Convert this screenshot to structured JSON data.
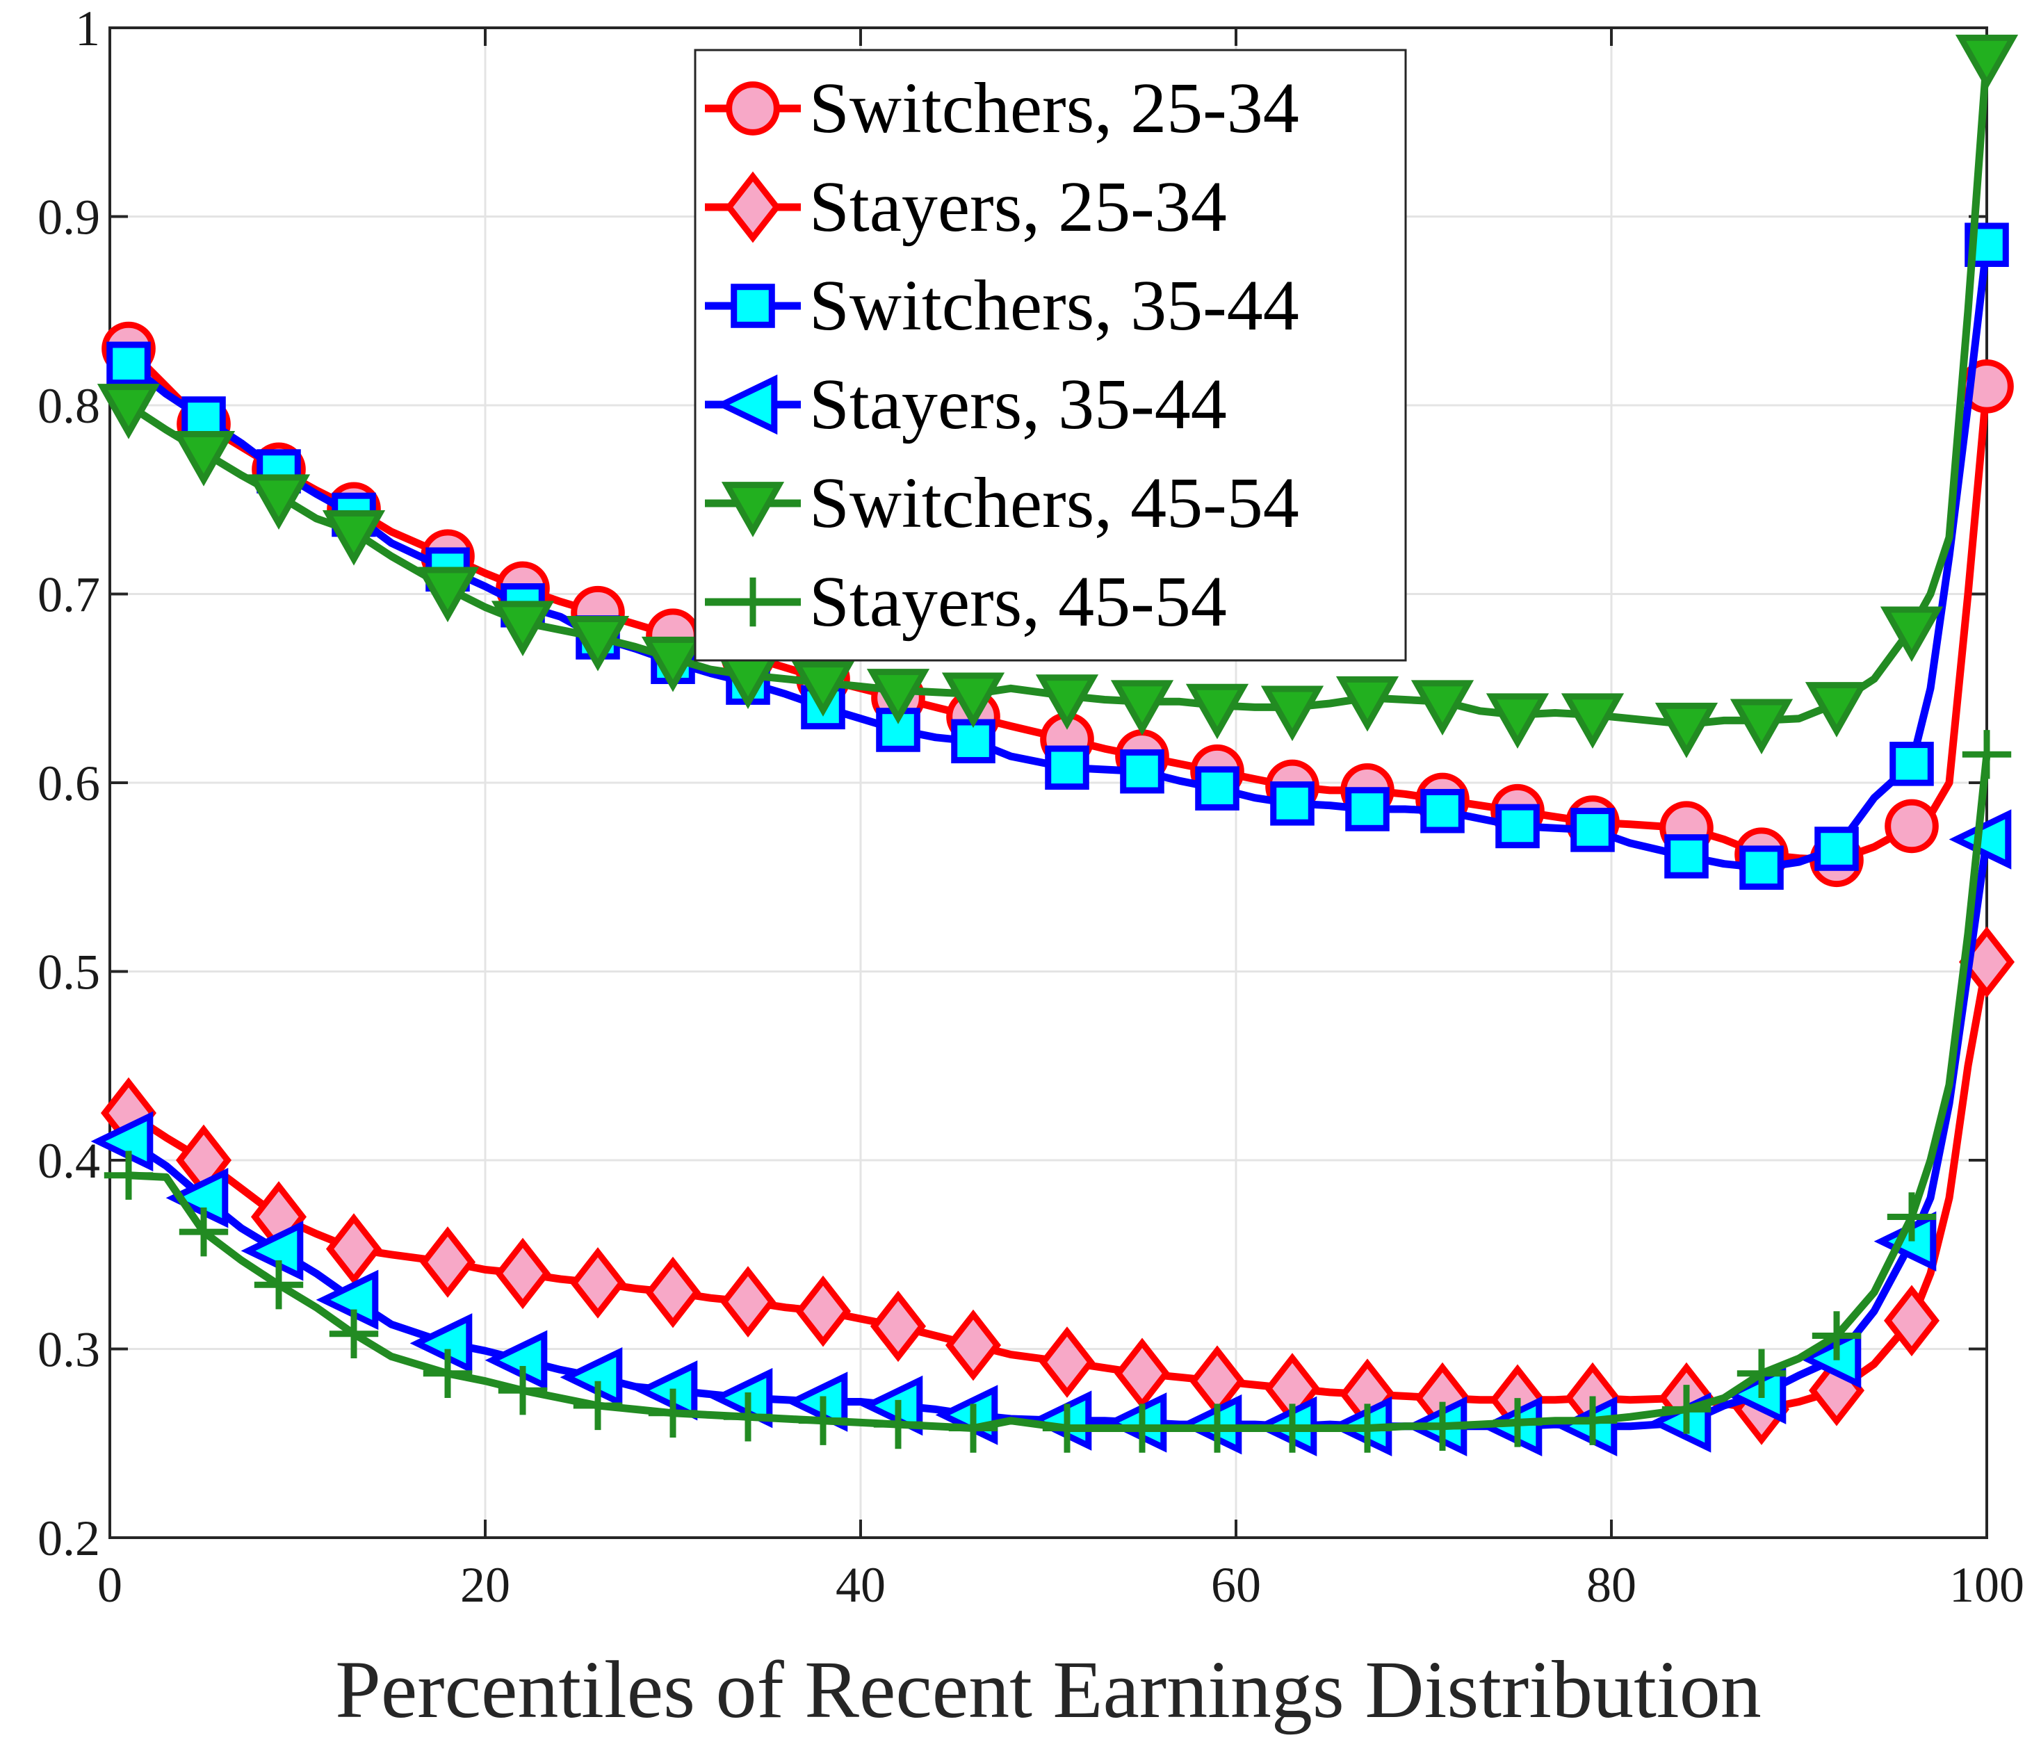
{
  "chart_data": {
    "type": "line",
    "title": "",
    "xlabel": "Percentiles of Recent Earnings Distribution",
    "ylabel": "",
    "xlim": [
      0,
      100
    ],
    "ylim": [
      0.2,
      1
    ],
    "grid": true,
    "legend_position": "top-center",
    "x_ticks": [
      0,
      20,
      40,
      60,
      80,
      100
    ],
    "x_tick_labels": [
      "0",
      "20",
      "40",
      "60",
      "80",
      "100"
    ],
    "y_ticks": [
      0.2,
      0.3,
      0.4,
      0.5,
      0.6,
      0.7,
      0.8,
      0.9,
      1
    ],
    "y_tick_labels": [
      "0.2",
      "0.3",
      "0.4",
      "0.5",
      "0.6",
      "0.7",
      "0.8",
      "0.9",
      "1"
    ],
    "marker_x": [
      1,
      5,
      9,
      13,
      18,
      22,
      26,
      30,
      34,
      38,
      42,
      46,
      51,
      55,
      59,
      63,
      67,
      71,
      75,
      79,
      84,
      88,
      92,
      96,
      100
    ],
    "series": [
      {
        "name": "Switchers, 25-34",
        "color": "#ff0000",
        "fill": "#f7a8c7",
        "marker": "circle",
        "x": [
          1,
          3,
          5,
          7,
          9,
          11,
          13,
          15,
          18,
          20,
          22,
          24,
          26,
          28,
          30,
          32,
          34,
          36,
          38,
          40,
          42,
          44,
          46,
          48,
          51,
          53,
          55,
          57,
          59,
          61,
          63,
          65,
          67,
          69,
          71,
          73,
          75,
          77,
          79,
          81,
          84,
          86,
          88,
          90,
          92,
          94,
          96,
          97,
          98,
          99,
          100
        ],
        "y": [
          0.83,
          0.81,
          0.79,
          0.778,
          0.766,
          0.755,
          0.745,
          0.733,
          0.72,
          0.711,
          0.703,
          0.696,
          0.69,
          0.684,
          0.678,
          0.672,
          0.667,
          0.661,
          0.655,
          0.65,
          0.645,
          0.64,
          0.635,
          0.63,
          0.623,
          0.618,
          0.614,
          0.61,
          0.606,
          0.602,
          0.598,
          0.596,
          0.596,
          0.594,
          0.591,
          0.588,
          0.585,
          0.582,
          0.579,
          0.578,
          0.576,
          0.57,
          0.562,
          0.56,
          0.559,
          0.566,
          0.577,
          0.583,
          0.6,
          0.7,
          0.81
        ]
      },
      {
        "name": "Stayers, 25-34",
        "color": "#ff0000",
        "fill": "#f7a8c7",
        "marker": "diamond",
        "x": [
          1,
          3,
          5,
          7,
          9,
          11,
          13,
          15,
          18,
          20,
          22,
          24,
          26,
          28,
          30,
          32,
          34,
          36,
          38,
          40,
          42,
          44,
          46,
          48,
          51,
          53,
          55,
          57,
          59,
          61,
          63,
          65,
          67,
          69,
          71,
          73,
          75,
          77,
          79,
          81,
          84,
          86,
          88,
          90,
          92,
          94,
          96,
          97,
          98,
          99,
          100
        ],
        "y": [
          0.425,
          0.412,
          0.4,
          0.385,
          0.37,
          0.361,
          0.353,
          0.35,
          0.346,
          0.342,
          0.34,
          0.337,
          0.335,
          0.332,
          0.33,
          0.327,
          0.325,
          0.322,
          0.32,
          0.316,
          0.312,
          0.307,
          0.302,
          0.297,
          0.293,
          0.29,
          0.287,
          0.285,
          0.283,
          0.281,
          0.279,
          0.277,
          0.276,
          0.275,
          0.274,
          0.273,
          0.273,
          0.273,
          0.274,
          0.273,
          0.274,
          0.271,
          0.268,
          0.272,
          0.278,
          0.292,
          0.315,
          0.34,
          0.38,
          0.45,
          0.505
        ]
      },
      {
        "name": "Switchers, 35-44",
        "color": "#0000ff",
        "fill": "#00ffff",
        "marker": "square",
        "x": [
          1,
          3,
          5,
          7,
          9,
          11,
          13,
          15,
          18,
          20,
          22,
          24,
          26,
          28,
          30,
          32,
          34,
          36,
          38,
          40,
          42,
          44,
          46,
          48,
          51,
          53,
          55,
          57,
          59,
          61,
          63,
          65,
          67,
          69,
          71,
          73,
          75,
          77,
          79,
          81,
          84,
          86,
          88,
          90,
          92,
          94,
          96,
          97,
          98,
          99,
          100
        ],
        "y": [
          0.822,
          0.806,
          0.793,
          0.78,
          0.765,
          0.753,
          0.742,
          0.727,
          0.713,
          0.704,
          0.694,
          0.688,
          0.677,
          0.671,
          0.664,
          0.658,
          0.653,
          0.647,
          0.64,
          0.634,
          0.628,
          0.624,
          0.622,
          0.614,
          0.608,
          0.607,
          0.606,
          0.601,
          0.597,
          0.592,
          0.589,
          0.588,
          0.586,
          0.586,
          0.585,
          0.581,
          0.577,
          0.576,
          0.575,
          0.568,
          0.561,
          0.557,
          0.555,
          0.558,
          0.565,
          0.592,
          0.61,
          0.65,
          0.72,
          0.8,
          0.885
        ]
      },
      {
        "name": "Stayers, 35-44",
        "color": "#0000ff",
        "fill": "#00ffff",
        "marker": "triangle-left",
        "x": [
          1,
          3,
          5,
          7,
          9,
          11,
          13,
          15,
          18,
          20,
          22,
          24,
          26,
          28,
          30,
          32,
          34,
          36,
          38,
          40,
          42,
          44,
          46,
          48,
          51,
          53,
          55,
          57,
          59,
          61,
          63,
          65,
          67,
          69,
          71,
          73,
          75,
          77,
          79,
          81,
          84,
          86,
          88,
          90,
          92,
          94,
          96,
          97,
          98,
          99,
          100
        ],
        "y": [
          0.41,
          0.397,
          0.38,
          0.364,
          0.352,
          0.34,
          0.326,
          0.313,
          0.303,
          0.299,
          0.294,
          0.289,
          0.285,
          0.28,
          0.278,
          0.276,
          0.274,
          0.273,
          0.272,
          0.272,
          0.27,
          0.268,
          0.265,
          0.263,
          0.262,
          0.262,
          0.261,
          0.26,
          0.26,
          0.26,
          0.259,
          0.26,
          0.259,
          0.259,
          0.259,
          0.259,
          0.259,
          0.26,
          0.259,
          0.259,
          0.261,
          0.27,
          0.276,
          0.286,
          0.295,
          0.32,
          0.357,
          0.38,
          0.43,
          0.5,
          0.57
        ]
      },
      {
        "name": "Switchers, 45-54",
        "color": "#228b22",
        "fill": "#22b01f",
        "marker": "triangle-down",
        "x": [
          1,
          3,
          5,
          7,
          9,
          11,
          13,
          15,
          18,
          20,
          22,
          24,
          26,
          28,
          30,
          32,
          34,
          36,
          38,
          40,
          42,
          44,
          46,
          48,
          51,
          53,
          55,
          57,
          59,
          61,
          63,
          65,
          67,
          69,
          71,
          73,
          75,
          77,
          79,
          81,
          84,
          86,
          88,
          90,
          92,
          94,
          96,
          97,
          98,
          99,
          100
        ],
        "y": [
          0.8,
          0.787,
          0.775,
          0.763,
          0.752,
          0.74,
          0.733,
          0.72,
          0.703,
          0.693,
          0.685,
          0.681,
          0.677,
          0.672,
          0.666,
          0.66,
          0.657,
          0.655,
          0.653,
          0.651,
          0.649,
          0.648,
          0.647,
          0.65,
          0.646,
          0.644,
          0.643,
          0.643,
          0.641,
          0.64,
          0.64,
          0.642,
          0.645,
          0.644,
          0.643,
          0.638,
          0.636,
          0.637,
          0.636,
          0.634,
          0.631,
          0.633,
          0.633,
          0.634,
          0.642,
          0.655,
          0.682,
          0.7,
          0.73,
          0.85,
          0.985
        ]
      },
      {
        "name": "Stayers, 45-54",
        "color": "#228b22",
        "fill": "#228b22",
        "marker": "plus",
        "x": [
          1,
          3,
          5,
          7,
          9,
          11,
          13,
          15,
          18,
          20,
          22,
          24,
          26,
          28,
          30,
          32,
          34,
          36,
          38,
          40,
          42,
          44,
          46,
          48,
          51,
          53,
          55,
          57,
          59,
          61,
          63,
          65,
          67,
          69,
          71,
          73,
          75,
          77,
          79,
          81,
          84,
          86,
          88,
          90,
          92,
          94,
          96,
          97,
          98,
          99,
          100
        ],
        "y": [
          0.392,
          0.391,
          0.362,
          0.347,
          0.334,
          0.322,
          0.308,
          0.296,
          0.287,
          0.283,
          0.278,
          0.274,
          0.27,
          0.268,
          0.266,
          0.265,
          0.264,
          0.263,
          0.262,
          0.261,
          0.26,
          0.259,
          0.258,
          0.262,
          0.258,
          0.258,
          0.258,
          0.258,
          0.258,
          0.258,
          0.258,
          0.258,
          0.258,
          0.259,
          0.259,
          0.26,
          0.261,
          0.262,
          0.262,
          0.264,
          0.268,
          0.274,
          0.287,
          0.295,
          0.307,
          0.33,
          0.37,
          0.4,
          0.44,
          0.52,
          0.615
        ]
      }
    ]
  }
}
